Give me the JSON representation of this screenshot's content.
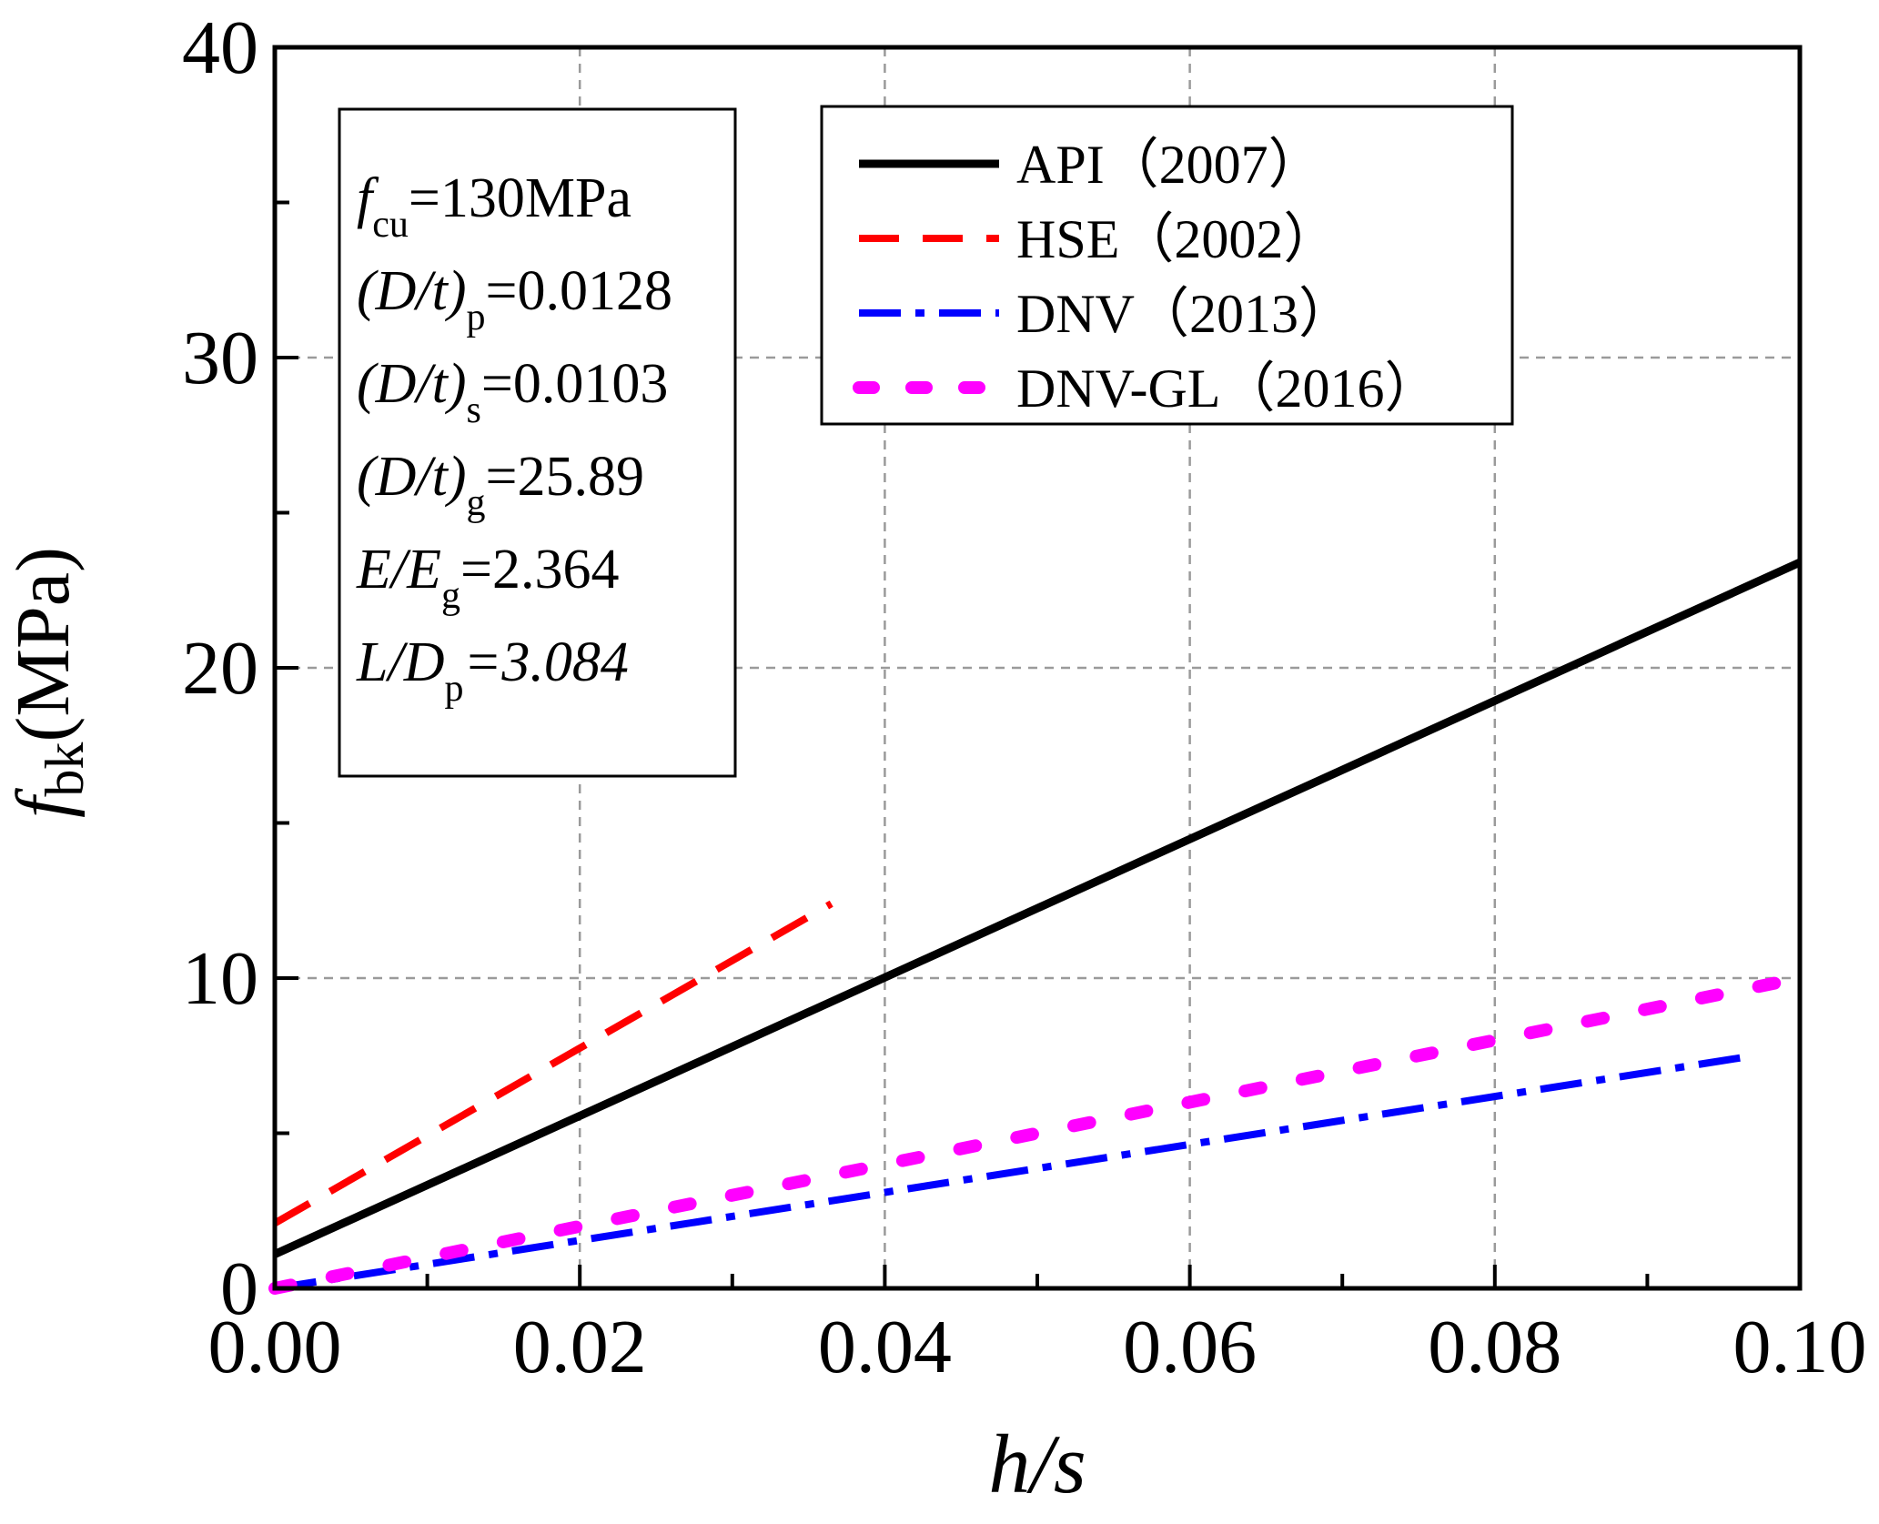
{
  "chart_data": {
    "type": "line",
    "xlabel": "h/s",
    "ylabel": {
      "main": "f",
      "sub": "bk",
      "unit": "(MPa)"
    },
    "xlim": [
      0,
      0.1
    ],
    "ylim": [
      0,
      40
    ],
    "grid": true,
    "x_ticks": [
      {
        "value": 0.0,
        "label": "0.00"
      },
      {
        "value": 0.02,
        "label": "0.02"
      },
      {
        "value": 0.04,
        "label": "0.04"
      },
      {
        "value": 0.06,
        "label": "0.06"
      },
      {
        "value": 0.08,
        "label": "0.08"
      },
      {
        "value": 0.1,
        "label": "0.10"
      }
    ],
    "y_ticks": [
      {
        "value": 0,
        "label": "0"
      },
      {
        "value": 10,
        "label": "10"
      },
      {
        "value": 20,
        "label": "20"
      },
      {
        "value": 30,
        "label": "30"
      },
      {
        "value": 40,
        "label": "40"
      }
    ],
    "legend_position": "top-right",
    "series": [
      {
        "name": "API（2007）",
        "style": "solid",
        "color": "#000000",
        "x": [
          0.0,
          0.1
        ],
        "y": [
          1.1,
          23.4
        ]
      },
      {
        "name": "HSE（2002）",
        "style": "dash",
        "color": "#ff0000",
        "x": [
          0.0,
          0.0365
        ],
        "y": [
          2.1,
          12.4
        ]
      },
      {
        "name": "DNV（2013）",
        "style": "dashdot",
        "color": "#0000ff",
        "x": [
          0.0,
          0.097
        ],
        "y": [
          0.0,
          7.5
        ]
      },
      {
        "name": "DNV-GL（2016）",
        "style": "dot",
        "color": "#ff00ff",
        "x": [
          0.0,
          0.1
        ],
        "y": [
          0.0,
          10.0
        ]
      }
    ],
    "annotations": [
      {
        "id": "fcu",
        "main": "f",
        "main_italic": true,
        "sub": "cu",
        "value": "=130MPa"
      },
      {
        "id": "dtp",
        "main": "(D/t)",
        "main_italic": true,
        "sub": "p",
        "value": "=0.0128"
      },
      {
        "id": "dts",
        "main": "(D/t)",
        "main_italic": true,
        "sub": "s",
        "value": "=0.0103"
      },
      {
        "id": "dtg",
        "main": "(D/t)",
        "main_italic": true,
        "sub": "g",
        "value": "=25.89"
      },
      {
        "id": "eeg",
        "main": "E/E",
        "main_italic": true,
        "sub": "g",
        "value": "=2.364"
      },
      {
        "id": "ldp",
        "main": "L/D",
        "main_italic": true,
        "sub": "p",
        "value": "=3.084"
      }
    ]
  }
}
